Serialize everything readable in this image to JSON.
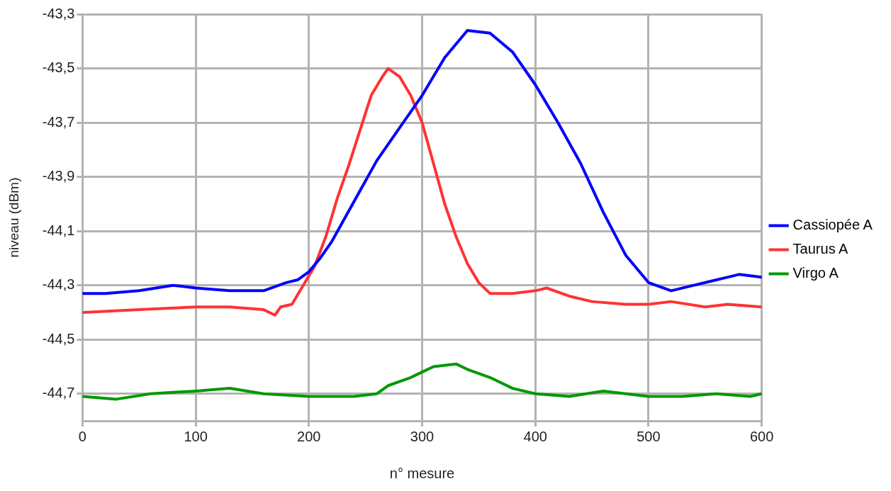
{
  "chart_data": {
    "type": "line",
    "xlabel": "n° mesure",
    "ylabel": "niveau (dBm)",
    "xlim": [
      0,
      600
    ],
    "xticks": [
      0,
      100,
      200,
      300,
      400,
      500,
      600
    ],
    "ylim": [
      -44.8,
      -43.3
    ],
    "yticks": [
      {
        "value": -44.7,
        "label": "-44,7"
      },
      {
        "value": -44.5,
        "label": "-44,5"
      },
      {
        "value": -44.3,
        "label": "-44,3"
      },
      {
        "value": -44.1,
        "label": "-44,1"
      },
      {
        "value": -43.9,
        "label": "-43,9"
      },
      {
        "value": -43.7,
        "label": "-43,7"
      },
      {
        "value": -43.5,
        "label": "-43,5"
      },
      {
        "value": -43.3,
        "label": "-43,3"
      }
    ],
    "grid": true,
    "legend": "right",
    "marker": "none",
    "line_style": "solid",
    "series": [
      {
        "name": "Cassiopée A",
        "color": "#0000ff",
        "x": [
          0,
          20,
          50,
          80,
          100,
          130,
          160,
          180,
          190,
          200,
          210,
          220,
          240,
          260,
          280,
          300,
          320,
          340,
          360,
          380,
          400,
          420,
          440,
          460,
          480,
          500,
          520,
          540,
          560,
          580,
          600
        ],
        "values": [
          -44.33,
          -44.33,
          -44.32,
          -44.3,
          -44.31,
          -44.32,
          -44.32,
          -44.29,
          -44.28,
          -44.25,
          -44.2,
          -44.14,
          -43.99,
          -43.84,
          -43.72,
          -43.6,
          -43.46,
          -43.36,
          -43.37,
          -43.44,
          -43.56,
          -43.7,
          -43.85,
          -44.03,
          -44.19,
          -44.29,
          -44.32,
          -44.3,
          -44.28,
          -44.26,
          -44.27
        ]
      },
      {
        "name": "Taurus A",
        "color": "#ff3333",
        "x": [
          0,
          50,
          100,
          130,
          160,
          170,
          175,
          185,
          195,
          205,
          215,
          225,
          235,
          245,
          255,
          265,
          270,
          280,
          290,
          300,
          310,
          320,
          330,
          340,
          350,
          360,
          380,
          400,
          410,
          430,
          450,
          480,
          500,
          520,
          550,
          570,
          600
        ],
        "values": [
          -44.4,
          -44.39,
          -44.38,
          -44.38,
          -44.39,
          -44.41,
          -44.38,
          -44.37,
          -44.3,
          -44.23,
          -44.12,
          -43.98,
          -43.86,
          -43.73,
          -43.6,
          -43.53,
          -43.5,
          -43.53,
          -43.6,
          -43.7,
          -43.85,
          -44.0,
          -44.12,
          -44.22,
          -44.29,
          -44.33,
          -44.33,
          -44.32,
          -44.31,
          -44.34,
          -44.36,
          -44.37,
          -44.37,
          -44.36,
          -44.38,
          -44.37,
          -44.38
        ]
      },
      {
        "name": "Virgo A",
        "color": "#009900",
        "x": [
          0,
          30,
          60,
          100,
          130,
          160,
          200,
          240,
          260,
          270,
          290,
          300,
          310,
          330,
          340,
          360,
          380,
          400,
          430,
          460,
          500,
          530,
          560,
          590,
          600
        ],
        "values": [
          -44.71,
          -44.72,
          -44.7,
          -44.69,
          -44.68,
          -44.7,
          -44.71,
          -44.71,
          -44.7,
          -44.67,
          -44.64,
          -44.62,
          -44.6,
          -44.59,
          -44.61,
          -44.64,
          -44.68,
          -44.7,
          -44.71,
          -44.69,
          -44.71,
          -44.71,
          -44.7,
          -44.71,
          -44.7
        ]
      }
    ]
  }
}
